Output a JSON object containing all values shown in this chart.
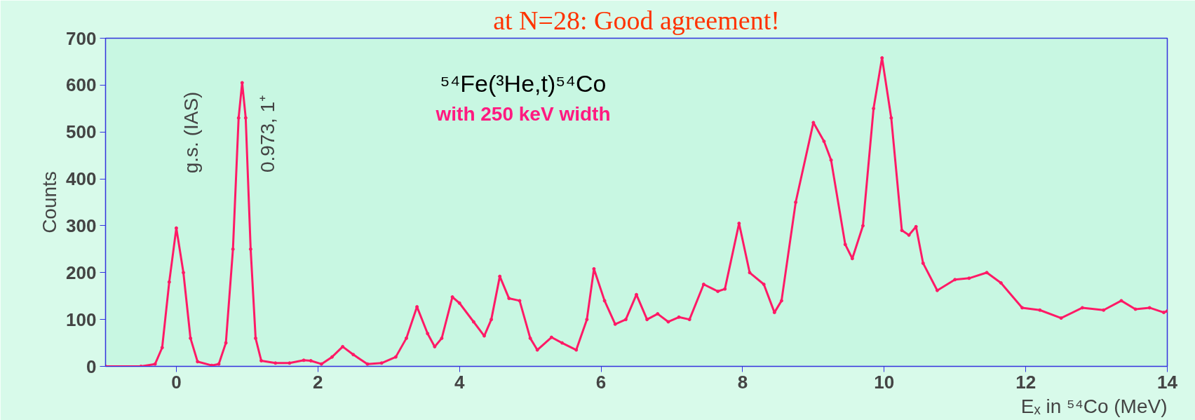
{
  "chart_data": {
    "type": "line",
    "title": "at N=28: Good agreement!",
    "xlabel": "Eₓ in ⁵⁴Co (MeV)",
    "ylabel": "Counts",
    "x": [
      -1,
      -0.5,
      -0.3,
      -0.2,
      -0.1,
      0,
      0.1,
      0.2,
      0.3,
      0.5,
      0.6,
      0.7,
      0.8,
      0.88,
      0.93,
      0.98,
      1.05,
      1.12,
      1.2,
      1.4,
      1.6,
      1.8,
      1.9,
      2.05,
      2.2,
      2.35,
      2.5,
      2.7,
      2.9,
      3.1,
      3.25,
      3.4,
      3.55,
      3.65,
      3.75,
      3.9,
      4.0,
      4.2,
      4.35,
      4.45,
      4.57,
      4.7,
      4.85,
      5.0,
      5.1,
      5.3,
      5.45,
      5.65,
      5.8,
      5.9,
      6.05,
      6.2,
      6.35,
      6.5,
      6.65,
      6.8,
      6.95,
      7.1,
      7.25,
      7.45,
      7.65,
      7.75,
      7.95,
      8.1,
      8.3,
      8.45,
      8.55,
      8.75,
      9.0,
      9.15,
      9.25,
      9.45,
      9.55,
      9.7,
      9.85,
      9.97,
      10.1,
      10.25,
      10.35,
      10.45,
      10.55,
      10.75,
      11.0,
      11.2,
      11.45,
      11.65,
      11.95,
      12.2,
      12.5,
      12.8,
      13.1,
      13.35,
      13.55,
      13.75,
      13.95,
      14.0
    ],
    "series": [
      {
        "color": "#ff1a66",
        "values": [
          0,
          0,
          5,
          40,
          180,
          295,
          200,
          60,
          10,
          2,
          5,
          50,
          250,
          530,
          605,
          530,
          250,
          60,
          12,
          7,
          7,
          13,
          12,
          5,
          20,
          42,
          25,
          5,
          7,
          20,
          60,
          127,
          70,
          42,
          60,
          148,
          135,
          95,
          65,
          100,
          192,
          145,
          140,
          60,
          35,
          62,
          50,
          35,
          100,
          208,
          140,
          90,
          100,
          153,
          100,
          112,
          95,
          105,
          100,
          175,
          160,
          165,
          305,
          200,
          175,
          115,
          140,
          350,
          520,
          480,
          440,
          260,
          230,
          300,
          550,
          658,
          530,
          290,
          280,
          298,
          220,
          162,
          185,
          188,
          200,
          178,
          125,
          120,
          103,
          125,
          120,
          140,
          122,
          125,
          115,
          118
        ]
      }
    ],
    "xlim": [
      -1,
      14
    ],
    "ylim": [
      0,
      700
    ],
    "xticks": [
      0,
      2,
      4,
      6,
      8,
      10,
      12,
      14
    ],
    "yticks": [
      0,
      100,
      200,
      300,
      400,
      500,
      600,
      700
    ],
    "annotations": [
      {
        "text": "g.s. (IAS)",
        "x": 0,
        "y": 295
      },
      {
        "text": "0.973, 1⁺",
        "x": 0.93,
        "y": 605
      },
      "⁵⁴Fe(³He,t)⁵⁴Co",
      "with 250 keV width"
    ],
    "grid": false,
    "marker": "circle",
    "line_style": "solid"
  }
}
